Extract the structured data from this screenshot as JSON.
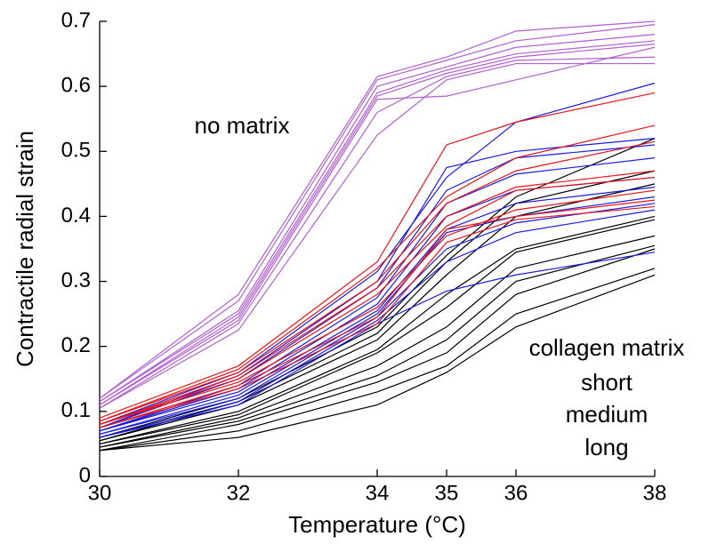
{
  "chart_data": {
    "type": "line",
    "x_label": "Temperature (°C)",
    "y_label": "Contractile radial strain",
    "legend_title": "collagen matrix",
    "x": [
      30,
      32,
      34,
      35,
      36,
      38
    ],
    "xlim": [
      30,
      38
    ],
    "xticks": [
      30,
      32,
      34,
      35,
      36,
      38
    ],
    "ylim": [
      0,
      0.7
    ],
    "yticks": [
      0,
      0.1,
      0.2,
      0.3,
      0.4,
      0.5,
      0.6,
      0.7
    ],
    "grid": false,
    "series": [
      {
        "name": "no matrix",
        "color": "#b060d0",
        "lines": [
          [
            0.12,
            0.28,
            0.615,
            0.645,
            0.685,
            0.7
          ],
          [
            0.12,
            0.27,
            0.61,
            0.64,
            0.67,
            0.695
          ],
          [
            0.115,
            0.255,
            0.6,
            0.63,
            0.66,
            0.68
          ],
          [
            0.115,
            0.25,
            0.59,
            0.625,
            0.65,
            0.67
          ],
          [
            0.11,
            0.245,
            0.585,
            0.62,
            0.645,
            0.665
          ],
          [
            0.11,
            0.24,
            0.58,
            0.585,
            0.61,
            0.66
          ],
          [
            0.105,
            0.235,
            0.56,
            0.615,
            0.64,
            0.645
          ],
          [
            0.105,
            0.225,
            0.525,
            0.61,
            0.635,
            0.635
          ]
        ]
      },
      {
        "name": "short",
        "color": "#e8141a",
        "lines": [
          [
            0.09,
            0.17,
            0.33,
            0.51,
            0.545,
            0.59
          ],
          [
            0.085,
            0.165,
            0.32,
            0.43,
            0.49,
            0.54
          ],
          [
            0.085,
            0.16,
            0.3,
            0.42,
            0.47,
            0.515
          ],
          [
            0.08,
            0.155,
            0.29,
            0.4,
            0.445,
            0.47
          ],
          [
            0.08,
            0.15,
            0.28,
            0.385,
            0.44,
            0.46
          ],
          [
            0.08,
            0.145,
            0.26,
            0.37,
            0.41,
            0.44
          ],
          [
            0.075,
            0.14,
            0.245,
            0.38,
            0.4,
            0.425
          ],
          [
            0.075,
            0.135,
            0.235,
            0.36,
            0.395,
            0.415
          ]
        ]
      },
      {
        "name": "medium",
        "color": "#1b1be0",
        "lines": [
          [
            0.08,
            0.16,
            0.315,
            0.46,
            0.545,
            0.605
          ],
          [
            0.075,
            0.155,
            0.3,
            0.475,
            0.5,
            0.52
          ],
          [
            0.075,
            0.15,
            0.29,
            0.44,
            0.49,
            0.51
          ],
          [
            0.07,
            0.14,
            0.275,
            0.42,
            0.465,
            0.49
          ],
          [
            0.07,
            0.135,
            0.265,
            0.4,
            0.44,
            0.46
          ],
          [
            0.07,
            0.13,
            0.255,
            0.38,
            0.42,
            0.445
          ],
          [
            0.065,
            0.125,
            0.25,
            0.375,
            0.4,
            0.43
          ],
          [
            0.065,
            0.12,
            0.245,
            0.35,
            0.39,
            0.42
          ],
          [
            0.06,
            0.115,
            0.24,
            0.33,
            0.375,
            0.41
          ],
          [
            0.06,
            0.11,
            0.235,
            0.285,
            0.31,
            0.345
          ]
        ]
      },
      {
        "name": "long",
        "color": "#000000",
        "lines": [
          [
            0.06,
            0.12,
            0.23,
            0.34,
            0.43,
            0.52
          ],
          [
            0.055,
            0.115,
            0.22,
            0.33,
            0.42,
            0.47
          ],
          [
            0.055,
            0.11,
            0.21,
            0.31,
            0.4,
            0.45
          ],
          [
            0.05,
            0.1,
            0.195,
            0.28,
            0.35,
            0.4
          ],
          [
            0.05,
            0.095,
            0.19,
            0.26,
            0.345,
            0.395
          ],
          [
            0.045,
            0.09,
            0.17,
            0.23,
            0.32,
            0.37
          ],
          [
            0.045,
            0.085,
            0.155,
            0.21,
            0.3,
            0.355
          ],
          [
            0.04,
            0.08,
            0.145,
            0.19,
            0.28,
            0.35
          ],
          [
            0.04,
            0.07,
            0.13,
            0.17,
            0.25,
            0.32
          ],
          [
            0.04,
            0.06,
            0.11,
            0.16,
            0.23,
            0.31
          ]
        ]
      }
    ]
  }
}
